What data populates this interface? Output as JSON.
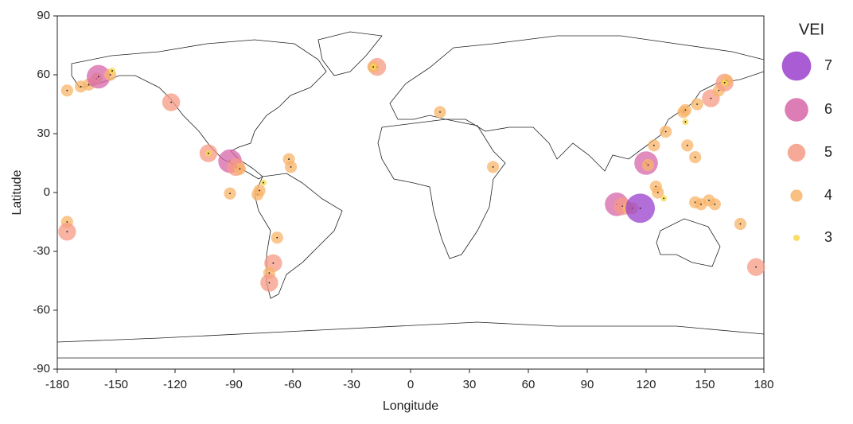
{
  "chart_data": {
    "type": "bubble",
    "xlabel": "Longitude",
    "ylabel": "Latitude",
    "xlim": [
      -180,
      180
    ],
    "ylim": [
      -90,
      90
    ],
    "xticks": [
      -180,
      -150,
      -120,
      -90,
      -60,
      -30,
      0,
      30,
      60,
      90,
      120,
      150,
      180
    ],
    "yticks": [
      -90,
      -60,
      -30,
      0,
      30,
      60,
      90
    ],
    "x": [
      -175,
      -168,
      -164,
      -160,
      -159,
      -153,
      -152,
      -122,
      -103,
      -103,
      -92,
      -89,
      -87,
      -92,
      -78,
      -77,
      -75,
      -62,
      -61,
      -68,
      -70,
      -72,
      -72,
      -175,
      -175,
      -17,
      -19,
      -19,
      15,
      42,
      105,
      108,
      111,
      113,
      117,
      120,
      121,
      124,
      125,
      126,
      129,
      145,
      148,
      152,
      155,
      168,
      176,
      130,
      139,
      140,
      140,
      146,
      141,
      145,
      153,
      157,
      160,
      161,
      160
    ],
    "y": [
      52,
      54,
      55,
      58,
      59,
      60,
      62,
      46,
      20,
      20,
      16,
      13,
      12,
      -0.5,
      -1,
      1,
      5,
      17,
      13,
      -23,
      -36,
      -41,
      -46,
      -15,
      -20,
      64,
      64,
      64,
      41,
      13,
      -6,
      -7,
      -8,
      -8,
      -8,
      15,
      14,
      24,
      3,
      0,
      -3,
      -5,
      -6,
      -4,
      -6,
      -16,
      -38,
      31,
      41,
      42,
      36,
      45,
      24,
      18,
      48,
      52,
      56,
      57,
      56
    ],
    "sizes": [
      4,
      4,
      4,
      4,
      6,
      4,
      3,
      5,
      5,
      3,
      6,
      5,
      4,
      4,
      4,
      4,
      3,
      4,
      4,
      4,
      5,
      4,
      5,
      4,
      5,
      5,
      4,
      3,
      4,
      4,
      6,
      5,
      4,
      4,
      7,
      6,
      4,
      4,
      4,
      4,
      3,
      4,
      4,
      4,
      4,
      4,
      5,
      4,
      4,
      4,
      3,
      4,
      4,
      4,
      5,
      4,
      5,
      4,
      3
    ],
    "size_legend": {
      "title": "VEI",
      "values": [
        7,
        6,
        5,
        4,
        3
      ],
      "colors": [
        "#9a3fcc",
        "#d766a8",
        "#f59a84",
        "#f8b46a",
        "#f7d84c"
      ]
    }
  }
}
